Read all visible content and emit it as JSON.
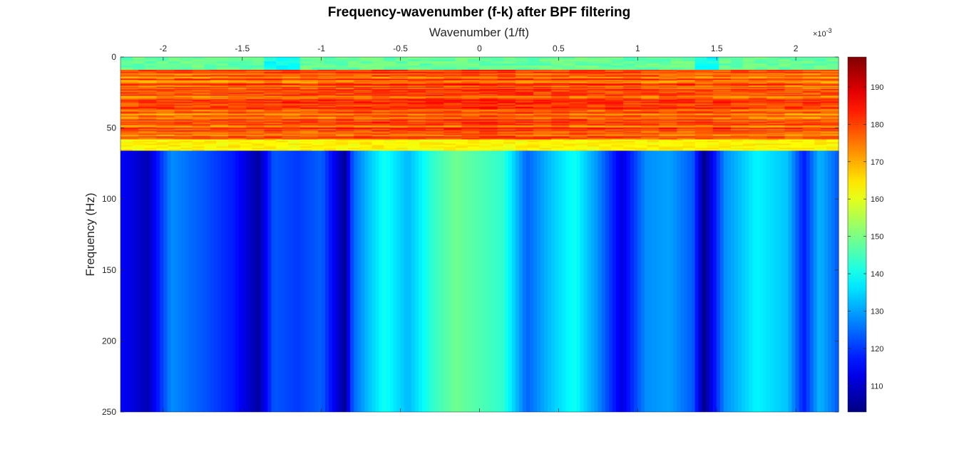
{
  "chart_data": {
    "type": "heatmap",
    "title": "Frequency-wavenumber (f-k) after BPF filtering",
    "xlabel": "Wavenumber (1/ft)",
    "ylabel": "Frequency (Hz)",
    "x_exponent_label": "×10",
    "x_exponent_power": "-3",
    "x_scale": 0.001,
    "xlim": [
      -2.27,
      2.27
    ],
    "ylim": [
      0,
      250
    ],
    "y_reversed": true,
    "x_ticks": [
      -2,
      -1.5,
      -1,
      -0.5,
      0,
      0.5,
      1,
      1.5,
      2
    ],
    "x_tick_labels": [
      "-2",
      "-1.5",
      "-1",
      "-0.5",
      "0",
      "0.5",
      "1",
      "1.5",
      "2"
    ],
    "y_ticks": [
      0,
      50,
      100,
      150,
      200,
      250
    ],
    "y_tick_labels": [
      "0",
      "50",
      "100",
      "150",
      "200",
      "250"
    ],
    "colormap": "jet",
    "clim": [
      103,
      198
    ],
    "colorbar_ticks": [
      110,
      120,
      130,
      140,
      150,
      160,
      170,
      180,
      190
    ],
    "colorbar_tick_labels": [
      "110",
      "120",
      "130",
      "140",
      "150",
      "160",
      "170",
      "180",
      "190"
    ],
    "grid": false,
    "frequency_bands": [
      {
        "f_range": [
          0,
          9
        ],
        "level": 148
      },
      {
        "f_range": [
          9,
          58
        ],
        "level": 180
      },
      {
        "f_range": [
          58,
          66
        ],
        "level": 163
      },
      {
        "f_range": [
          66,
          250
        ],
        "level": 127
      }
    ],
    "high_band_wavenumber_profile": {
      "k": [
        -2.27,
        -2.1,
        -1.95,
        -1.75,
        -1.55,
        -1.4,
        -1.3,
        -1.15,
        -1.0,
        -0.85,
        -0.8,
        -0.7,
        -0.6,
        -0.45,
        -0.3,
        -0.15,
        0,
        0.15,
        0.3,
        0.45,
        0.6,
        0.75,
        0.9,
        1.05,
        1.2,
        1.35,
        1.42,
        1.55,
        1.75,
        1.95,
        2.05,
        2.15,
        2.27
      ],
      "level": [
        115,
        108,
        128,
        123,
        117,
        106,
        123,
        120,
        124,
        105,
        124,
        133,
        140,
        132,
        143,
        149,
        146,
        143,
        124,
        133,
        140,
        128,
        112,
        128,
        130,
        123,
        104,
        128,
        138,
        133,
        117,
        132,
        123
      ]
    }
  }
}
